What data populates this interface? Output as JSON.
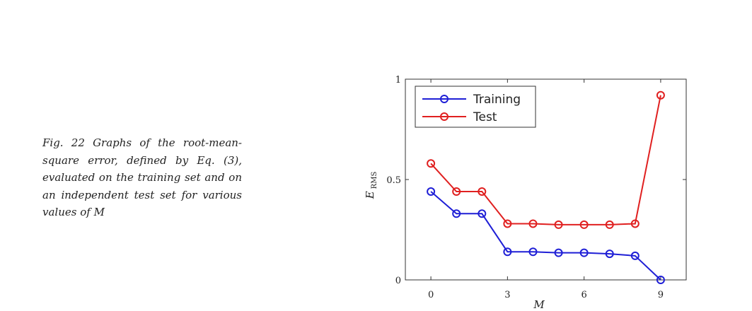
{
  "caption": "Fig. 22 Graphs of the root-mean-square error, defined by Eq. (3), evaluated on the training set and on an independent test set for various values of M",
  "chart_data": {
    "type": "line",
    "xlabel": "M",
    "ylabel_main": "E",
    "ylabel_sub": "RMS",
    "x": [
      0,
      1,
      2,
      3,
      4,
      5,
      6,
      7,
      8,
      9
    ],
    "xlim": [
      -1,
      10
    ],
    "ylim": [
      0,
      1
    ],
    "xticks": [
      0,
      3,
      6,
      9
    ],
    "yticks": [
      0,
      0.5,
      1
    ],
    "grid": false,
    "legend_position": "top-left",
    "series": [
      {
        "name": "Training",
        "color": "#1f1fd6",
        "values": [
          0.44,
          0.33,
          0.33,
          0.14,
          0.14,
          0.135,
          0.135,
          0.13,
          0.12,
          0.0
        ]
      },
      {
        "name": "Test",
        "color": "#e02020",
        "values": [
          0.58,
          0.44,
          0.44,
          0.28,
          0.28,
          0.275,
          0.275,
          0.275,
          0.28,
          0.92
        ]
      }
    ]
  }
}
